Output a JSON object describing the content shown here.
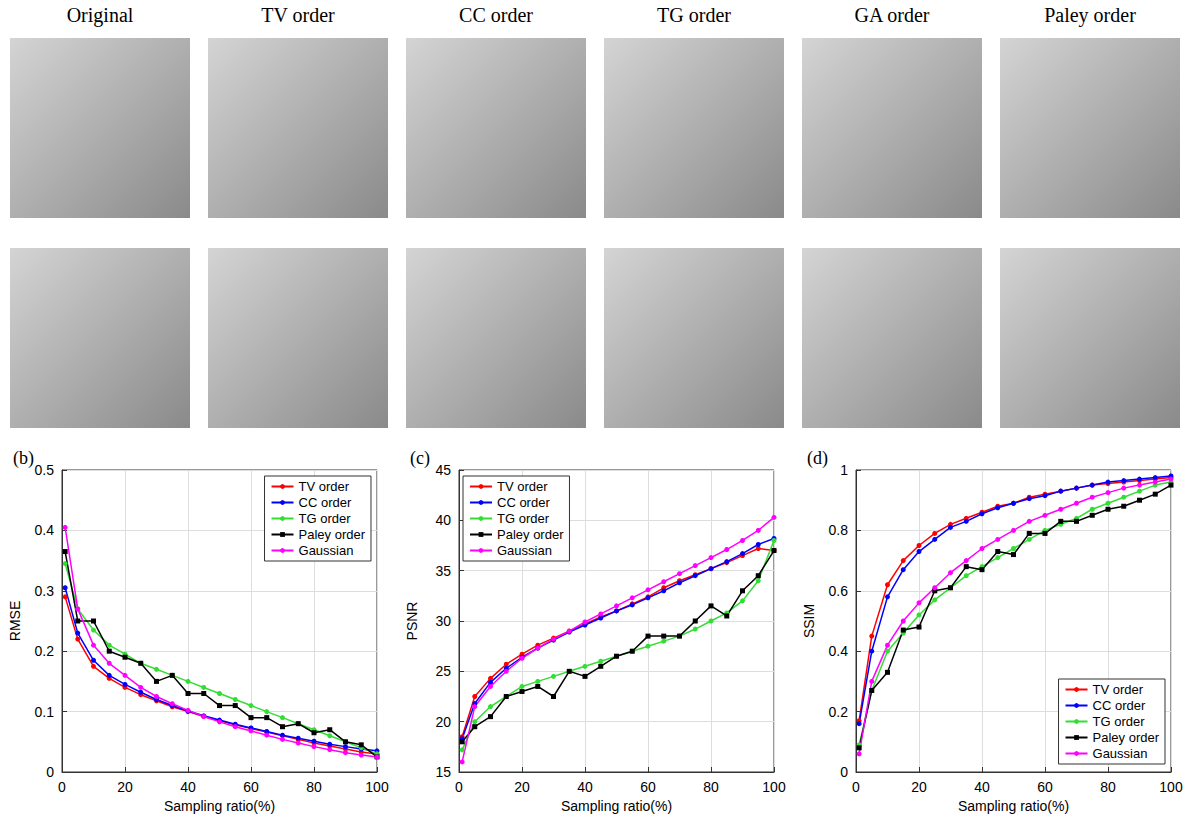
{
  "images": {
    "column_titles": [
      "Original",
      "TV order",
      "CC order",
      "TG order",
      "GA order",
      "Paley order"
    ]
  },
  "chart_data": [
    {
      "type": "line",
      "panel": "(b)",
      "xlabel": "Sampling ratio(%)",
      "ylabel": "RMSE",
      "x": [
        1,
        5,
        10,
        15,
        20,
        25,
        30,
        35,
        40,
        45,
        50,
        55,
        60,
        65,
        70,
        75,
        80,
        85,
        90,
        95,
        100
      ],
      "xlim": [
        0,
        100
      ],
      "xticks": [
        0,
        20,
        40,
        60,
        80,
        100
      ],
      "ylim": [
        0,
        0.5
      ],
      "yticks": [
        0,
        0.1,
        0.2,
        0.3,
        0.4,
        0.5
      ],
      "grid": true,
      "legend": "upper right",
      "series": [
        {
          "name": "TV order",
          "color": "#ff0000",
          "marker": "circle",
          "values": [
            0.29,
            0.22,
            0.175,
            0.155,
            0.14,
            0.128,
            0.118,
            0.108,
            0.1,
            0.092,
            0.085,
            0.078,
            0.072,
            0.066,
            0.06,
            0.054,
            0.048,
            0.043,
            0.038,
            0.033,
            0.03
          ]
        },
        {
          "name": "CC order",
          "color": "#0000ff",
          "marker": "circle",
          "values": [
            0.305,
            0.23,
            0.185,
            0.16,
            0.145,
            0.132,
            0.12,
            0.11,
            0.101,
            0.093,
            0.086,
            0.079,
            0.073,
            0.067,
            0.061,
            0.056,
            0.051,
            0.046,
            0.042,
            0.038,
            0.035
          ]
        },
        {
          "name": "TG order",
          "color": "#33dd33",
          "marker": "circle",
          "values": [
            0.345,
            0.27,
            0.235,
            0.21,
            0.195,
            0.18,
            0.17,
            0.16,
            0.15,
            0.14,
            0.13,
            0.12,
            0.11,
            0.1,
            0.09,
            0.08,
            0.07,
            0.06,
            0.05,
            0.04,
            0.03
          ]
        },
        {
          "name": "Paley order",
          "color": "#000000",
          "marker": "square",
          "values": [
            0.365,
            0.25,
            0.25,
            0.2,
            0.19,
            0.18,
            0.15,
            0.16,
            0.13,
            0.13,
            0.11,
            0.11,
            0.09,
            0.09,
            0.075,
            0.08,
            0.065,
            0.07,
            0.05,
            0.045,
            0.025
          ]
        },
        {
          "name": "Gaussian",
          "color": "#ff00ff",
          "marker": "circle",
          "values": [
            0.405,
            0.27,
            0.21,
            0.18,
            0.16,
            0.14,
            0.125,
            0.113,
            0.102,
            0.092,
            0.083,
            0.075,
            0.068,
            0.061,
            0.054,
            0.048,
            0.042,
            0.037,
            0.032,
            0.028,
            0.025
          ]
        }
      ]
    },
    {
      "type": "line",
      "panel": "(c)",
      "xlabel": "Sampling ratio(%)",
      "ylabel": "PSNR",
      "x": [
        1,
        5,
        10,
        15,
        20,
        25,
        30,
        35,
        40,
        45,
        50,
        55,
        60,
        65,
        70,
        75,
        80,
        85,
        90,
        95,
        100
      ],
      "xlim": [
        0,
        100
      ],
      "xticks": [
        0,
        20,
        40,
        60,
        80,
        100
      ],
      "ylim": [
        15,
        45
      ],
      "yticks": [
        15,
        20,
        25,
        30,
        35,
        40,
        45
      ],
      "grid": true,
      "legend": "upper left",
      "series": [
        {
          "name": "TV order",
          "color": "#ff0000",
          "marker": "circle",
          "values": [
            18.5,
            22.5,
            24.3,
            25.7,
            26.7,
            27.6,
            28.3,
            29,
            29.7,
            30.4,
            31,
            31.7,
            32.4,
            33.3,
            34,
            34.6,
            35.2,
            35.8,
            36.5,
            37.2,
            37
          ]
        },
        {
          "name": "CC order",
          "color": "#0000ff",
          "marker": "circle",
          "values": [
            18.3,
            21.8,
            23.9,
            25.3,
            26.4,
            27.3,
            28.1,
            28.9,
            29.6,
            30.3,
            31,
            31.6,
            32.3,
            33,
            33.8,
            34.5,
            35.2,
            35.9,
            36.7,
            37.6,
            38.2
          ]
        },
        {
          "name": "TG order",
          "color": "#33dd33",
          "marker": "circle",
          "values": [
            17.2,
            20,
            21.5,
            22.5,
            23.5,
            24,
            24.5,
            25,
            25.5,
            26,
            26.5,
            27,
            27.5,
            28,
            28.5,
            29.2,
            30,
            30.8,
            32,
            34,
            38
          ]
        },
        {
          "name": "Paley order",
          "color": "#000000",
          "marker": "square",
          "values": [
            18,
            19.5,
            20.5,
            22.5,
            23,
            23.5,
            22.5,
            25,
            24.5,
            25.5,
            26.5,
            27,
            28.5,
            28.5,
            28.5,
            30,
            31.5,
            30.5,
            33,
            34.5,
            37
          ]
        },
        {
          "name": "Gaussian",
          "color": "#ff00ff",
          "marker": "circle",
          "values": [
            16,
            21.5,
            23.5,
            25,
            26.3,
            27.3,
            28.2,
            29,
            29.9,
            30.7,
            31.5,
            32.3,
            33.1,
            33.9,
            34.7,
            35.5,
            36.3,
            37.1,
            38,
            39,
            40.3
          ]
        }
      ]
    },
    {
      "type": "line",
      "panel": "(d)",
      "xlabel": "Sampling ratio(%)",
      "ylabel": "SSIM",
      "x": [
        1,
        5,
        10,
        15,
        20,
        25,
        30,
        35,
        40,
        45,
        50,
        55,
        60,
        65,
        70,
        75,
        80,
        85,
        90,
        95,
        100
      ],
      "xlim": [
        0,
        100
      ],
      "xticks": [
        0,
        20,
        40,
        60,
        80,
        100
      ],
      "ylim": [
        0,
        1
      ],
      "yticks": [
        0,
        0.2,
        0.4,
        0.6,
        0.8,
        1
      ],
      "grid": true,
      "legend": "lower right",
      "series": [
        {
          "name": "TV order",
          "color": "#ff0000",
          "marker": "circle",
          "values": [
            0.17,
            0.45,
            0.62,
            0.7,
            0.75,
            0.79,
            0.82,
            0.84,
            0.86,
            0.88,
            0.89,
            0.91,
            0.92,
            0.93,
            0.94,
            0.95,
            0.955,
            0.96,
            0.965,
            0.97,
            0.975
          ]
        },
        {
          "name": "CC order",
          "color": "#0000ff",
          "marker": "circle",
          "values": [
            0.16,
            0.4,
            0.58,
            0.67,
            0.73,
            0.77,
            0.81,
            0.83,
            0.855,
            0.875,
            0.89,
            0.905,
            0.915,
            0.93,
            0.94,
            0.95,
            0.96,
            0.965,
            0.97,
            0.975,
            0.98
          ]
        },
        {
          "name": "TG order",
          "color": "#33dd33",
          "marker": "circle",
          "values": [
            0.09,
            0.27,
            0.4,
            0.46,
            0.52,
            0.57,
            0.61,
            0.65,
            0.68,
            0.71,
            0.74,
            0.77,
            0.8,
            0.82,
            0.84,
            0.87,
            0.89,
            0.91,
            0.93,
            0.95,
            0.96
          ]
        },
        {
          "name": "Paley order",
          "color": "#000000",
          "marker": "square",
          "values": [
            0.08,
            0.27,
            0.33,
            0.47,
            0.48,
            0.6,
            0.61,
            0.68,
            0.67,
            0.73,
            0.72,
            0.79,
            0.79,
            0.83,
            0.83,
            0.85,
            0.87,
            0.88,
            0.9,
            0.92,
            0.95
          ]
        },
        {
          "name": "Gaussian",
          "color": "#ff00ff",
          "marker": "circle",
          "values": [
            0.06,
            0.3,
            0.42,
            0.5,
            0.56,
            0.61,
            0.66,
            0.7,
            0.74,
            0.77,
            0.8,
            0.83,
            0.85,
            0.87,
            0.89,
            0.91,
            0.925,
            0.94,
            0.95,
            0.96,
            0.97
          ]
        }
      ]
    }
  ]
}
